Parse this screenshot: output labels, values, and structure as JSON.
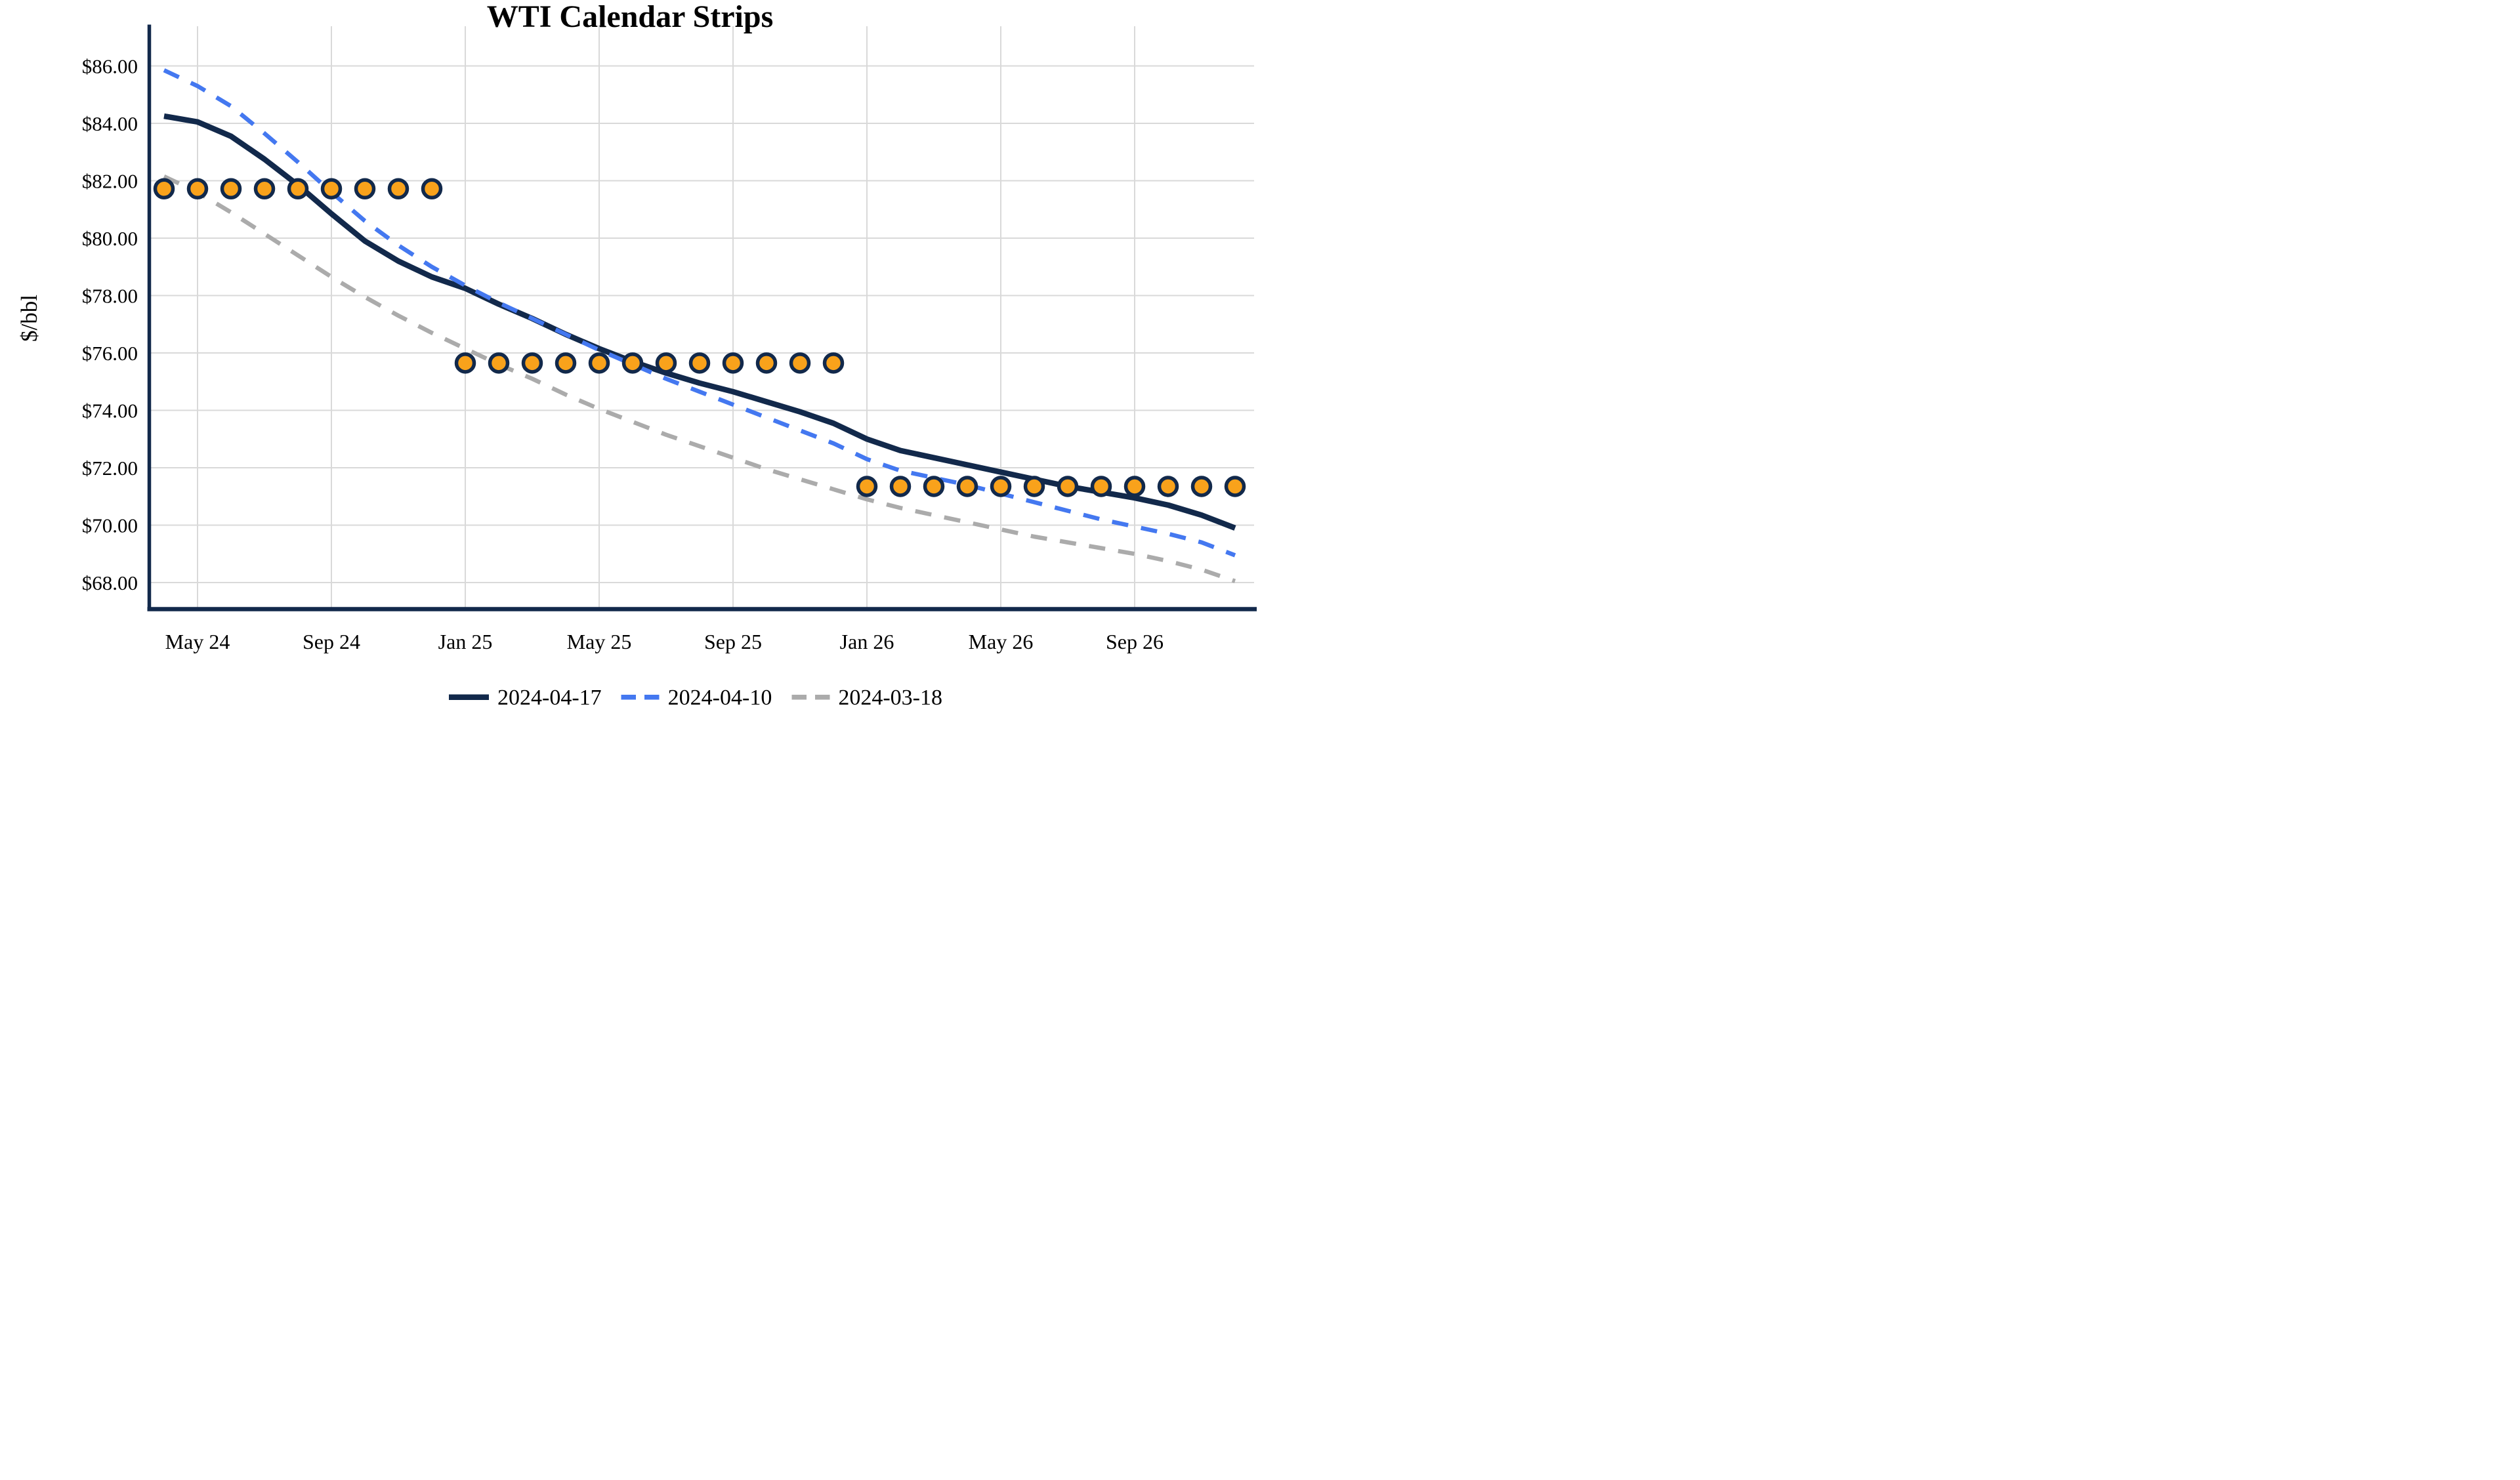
{
  "title": "WTI Calendar Strips",
  "y_axis": {
    "label": "$/bbl",
    "ticks": [
      {
        "value": 86,
        "label": "$86.00"
      },
      {
        "value": 84,
        "label": "$84.00"
      },
      {
        "value": 82,
        "label": "$82.00"
      },
      {
        "value": 80,
        "label": "$80.00"
      },
      {
        "value": 78,
        "label": "$78.00"
      },
      {
        "value": 76,
        "label": "$76.00"
      },
      {
        "value": 74,
        "label": "$74.00"
      },
      {
        "value": 72,
        "label": "$72.00"
      },
      {
        "value": 70,
        "label": "$70.00"
      },
      {
        "value": 68,
        "label": "$68.00"
      }
    ]
  },
  "x_axis": {
    "ticks": [
      {
        "label": "May 24",
        "month_index": 1
      },
      {
        "label": "Sep 24",
        "month_index": 5
      },
      {
        "label": "Jan 25",
        "month_index": 9
      },
      {
        "label": "May 25",
        "month_index": 13
      },
      {
        "label": "Sep 25",
        "month_index": 17
      },
      {
        "label": "Jan 26",
        "month_index": 21
      },
      {
        "label": "May 26",
        "month_index": 25
      },
      {
        "label": "Sep 26",
        "month_index": 29
      }
    ]
  },
  "legend": {
    "items": [
      {
        "label": "2024-04-17",
        "style": "solid",
        "color": "#12294B"
      },
      {
        "label": "2024-04-10",
        "style": "dashed",
        "color": "#4478F0"
      },
      {
        "label": "2024-03-18",
        "style": "dashed",
        "color": "#ABABAB"
      }
    ]
  },
  "colors": {
    "navy": "#12294B",
    "blue": "#4478F0",
    "gray": "#ABABAB",
    "orange": "#F9A21B",
    "grid": "#D9D9D9",
    "background": "#FFFFFF",
    "text": "#000000"
  },
  "chart_data": {
    "type": "line",
    "title": "WTI Calendar Strips",
    "xlabel": "",
    "ylabel": "$/bbl",
    "ylim": [
      67.0,
      86.9
    ],
    "grid": true,
    "legend_position": "bottom",
    "months": [
      "Apr 24",
      "May 24",
      "Jun 24",
      "Jul 24",
      "Aug 24",
      "Sep 24",
      "Oct 24",
      "Nov 24",
      "Dec 24",
      "Jan 25",
      "Feb 25",
      "Mar 25",
      "Apr 25",
      "May 25",
      "Jun 25",
      "Jul 25",
      "Aug 25",
      "Sep 25",
      "Oct 25",
      "Nov 25",
      "Dec 25",
      "Jan 26",
      "Feb 26",
      "Mar 26",
      "Apr 26",
      "May 26",
      "Jun 26",
      "Jul 26",
      "Aug 26",
      "Sep 26",
      "Oct 26",
      "Nov 26",
      "Dec 26"
    ],
    "series": [
      {
        "name": "2024-04-17",
        "style": "solid",
        "color_key": "navy",
        "values": [
          84.25,
          84.05,
          83.55,
          82.75,
          81.85,
          80.85,
          79.9,
          79.2,
          78.65,
          78.25,
          77.7,
          77.2,
          76.65,
          76.15,
          75.7,
          75.3,
          74.95,
          74.65,
          74.3,
          73.95,
          73.55,
          73.0,
          72.6,
          72.35,
          72.1,
          71.85,
          71.6,
          71.35,
          71.15,
          70.95,
          70.7,
          70.35,
          69.9
        ]
      },
      {
        "name": "2024-04-10",
        "style": "dashed",
        "color_key": "blue",
        "values": [
          85.85,
          85.3,
          84.6,
          83.65,
          82.65,
          81.6,
          80.6,
          79.75,
          79.0,
          78.35,
          77.75,
          77.2,
          76.65,
          76.1,
          75.6,
          75.1,
          74.65,
          74.2,
          73.75,
          73.3,
          72.85,
          72.3,
          71.9,
          71.65,
          71.4,
          71.1,
          70.8,
          70.5,
          70.2,
          69.95,
          69.7,
          69.4,
          68.95
        ]
      },
      {
        "name": "2024-03-18",
        "style": "dashed",
        "color_key": "gray",
        "values": [
          82.15,
          81.6,
          80.9,
          80.15,
          79.4,
          78.65,
          77.95,
          77.3,
          76.7,
          76.15,
          75.6,
          75.1,
          74.55,
          74.05,
          73.6,
          73.15,
          72.75,
          72.35,
          71.95,
          71.6,
          71.25,
          70.9,
          70.6,
          70.35,
          70.1,
          69.85,
          69.6,
          69.4,
          69.2,
          69.0,
          68.75,
          68.45,
          68.05
        ]
      }
    ],
    "strip_dots": {
      "color_key": "orange",
      "groups": [
        {
          "range": "Apr 24 - Dec 24",
          "value": 81.72,
          "start": 0,
          "count": 9
        },
        {
          "range": "Jan 25 - Dec 25",
          "value": 75.65,
          "start": 9,
          "count": 12
        },
        {
          "range": "Jan 26 - Dec 26",
          "value": 71.35,
          "start": 21,
          "count": 12
        }
      ]
    }
  }
}
